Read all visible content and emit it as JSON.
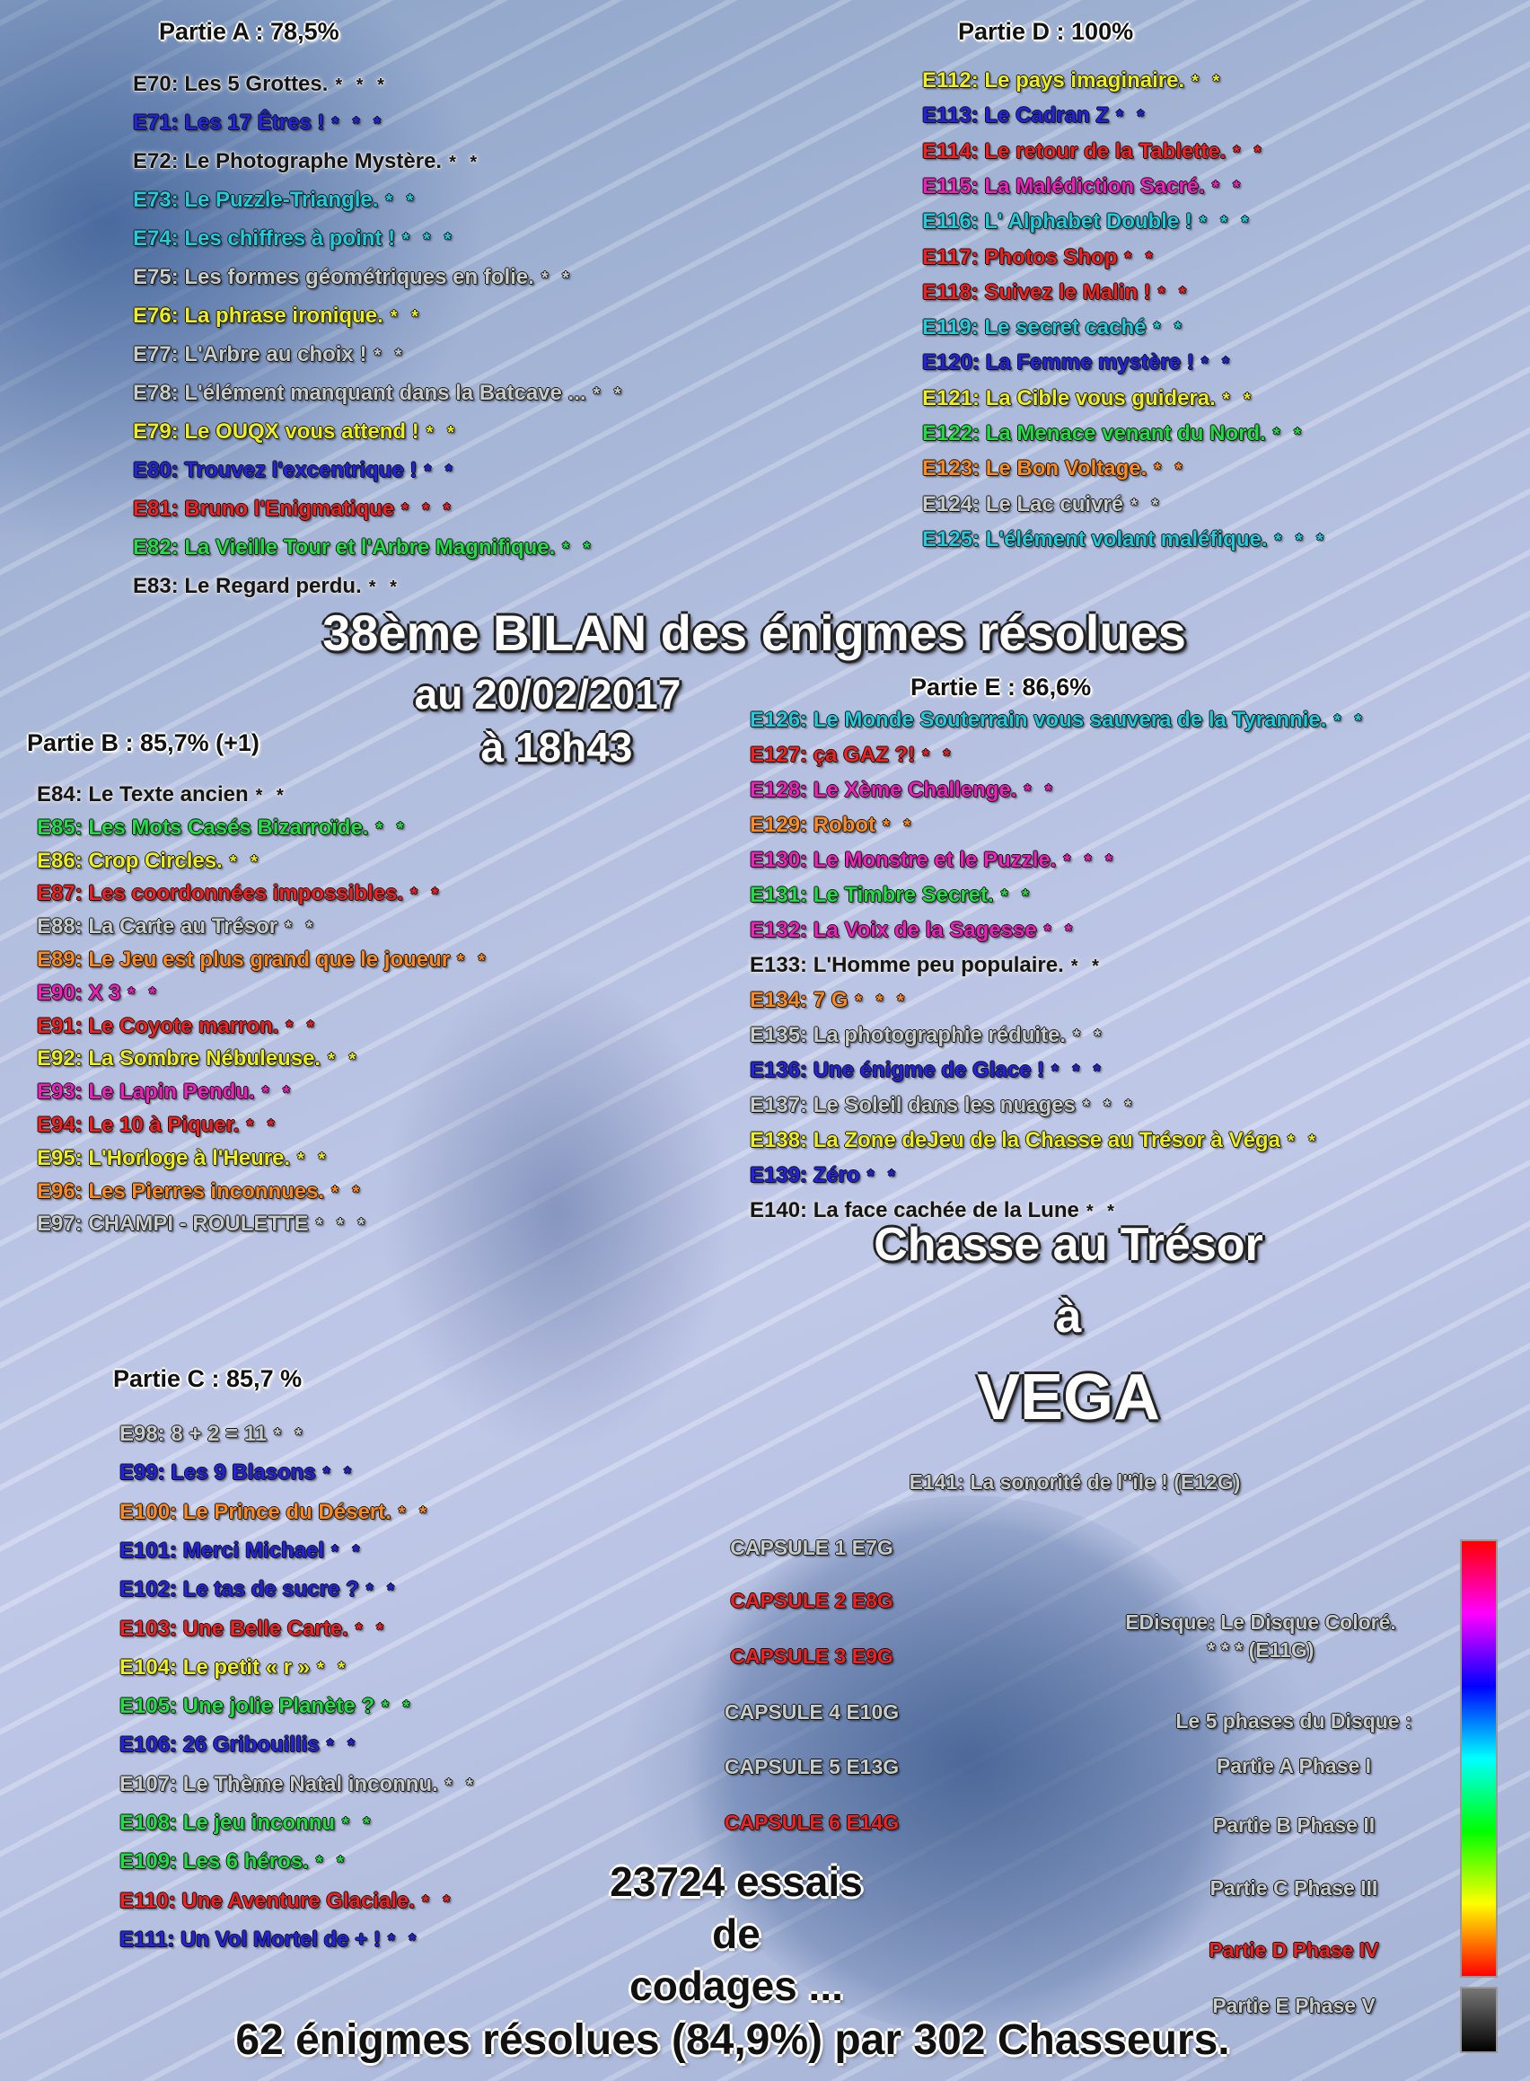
{
  "colors": {
    "black": "#151515",
    "blue": "#2323dd",
    "cyan": "#22ccdd",
    "gray": "#c9cdc9",
    "yellow": "#eeee22",
    "red": "#ee2222",
    "green": "#22dd44",
    "magenta": "#ee22bb",
    "orange": "#ff8a22",
    "gradient_bar": [
      "#ff0000",
      "#ff00ff",
      "#0000ff",
      "#00ffff",
      "#00ff00",
      "#ffff00",
      "#ff0000"
    ],
    "gray_bar": [
      "#777777",
      "#000000"
    ]
  },
  "headline": {
    "title": "38ème BILAN des énigmes résolues",
    "date": "au 20/02/2017",
    "time": "à 18h43"
  },
  "parts": {
    "A": {
      "title": "Partie A : 78,5%",
      "entries": [
        {
          "text": "E70: Les 5 Grottes.",
          "stars": "* * *",
          "color": "black"
        },
        {
          "text": "E71: Les 17 Êtres !",
          "stars": "* * *",
          "color": "blue"
        },
        {
          "text": "E72: Le Photographe Mystère.",
          "stars": "* *",
          "color": "black"
        },
        {
          "text": "E73: Le Puzzle-Triangle.",
          "stars": "* *",
          "color": "cyan"
        },
        {
          "text": "E74: Les chiffres à point !",
          "stars": "* * *",
          "color": "cyan"
        },
        {
          "text": "E75: Les formes géométriques en folie.",
          "stars": "* *",
          "color": "gray"
        },
        {
          "text": "E76: La phrase ironique.",
          "stars": "* *",
          "color": "yellow"
        },
        {
          "text": "E77: L'Arbre au choix !",
          "stars": "* *",
          "color": "gray"
        },
        {
          "text": "E78: L'élément manquant dans la Batcave ...",
          "stars": "* *",
          "color": "gray"
        },
        {
          "text": "E79: Le OUQX vous attend !",
          "stars": "* *",
          "color": "yellow"
        },
        {
          "text": "E80: Trouvez l'excentrique !",
          "stars": "* *",
          "color": "blue"
        },
        {
          "text": "E81: Bruno l'Enigmatique",
          "stars": "* * *",
          "color": "red"
        },
        {
          "text": "E82: La Vieille Tour et l'Arbre Magnifique.",
          "stars": "* *",
          "color": "green"
        },
        {
          "text": "E83: Le Regard perdu.",
          "stars": "* *",
          "color": "black"
        }
      ]
    },
    "B": {
      "title": "Partie B : 85,7% (+1)",
      "entries": [
        {
          "text": "E84: Le Texte ancien",
          "stars": "* *",
          "color": "black"
        },
        {
          "text": "E85: Les Mots Casés Bizarroïde.",
          "stars": "* *",
          "color": "green"
        },
        {
          "text": "E86: Crop Circles.",
          "stars": "* *",
          "color": "yellow"
        },
        {
          "text": "E87: Les coordonnées impossibles.",
          "stars": "* *",
          "color": "red"
        },
        {
          "text": "E88: La Carte au Trésor",
          "stars": "* *",
          "color": "gray"
        },
        {
          "text": "E89: Le Jeu est plus grand que le joueur",
          "stars": "* *",
          "color": "orange"
        },
        {
          "text": "E90: X 3",
          "stars": "* *",
          "color": "magenta"
        },
        {
          "text": "E91: Le Coyote marron.",
          "stars": "* *",
          "color": "red"
        },
        {
          "text": "E92: La Sombre Nébuleuse.",
          "stars": "* *",
          "color": "yellow"
        },
        {
          "text": "E93: Le Lapin Pendu.",
          "stars": "* *",
          "color": "magenta"
        },
        {
          "text": "E94: Le 10 à Piquer.",
          "stars": "* *",
          "color": "red"
        },
        {
          "text": "E95: L'Horloge à l'Heure.",
          "stars": "* *",
          "color": "yellow"
        },
        {
          "text": "E96: Les Pierres inconnues.",
          "stars": "* *",
          "color": "orange"
        },
        {
          "text": "E97: CHAMPI - ROULETTE",
          "stars": "* * *",
          "color": "gray"
        }
      ]
    },
    "C": {
      "title": "Partie C : 85,7 %",
      "entries": [
        {
          "text": "E98: 8 + 2 = 11",
          "stars": "* *",
          "color": "gray"
        },
        {
          "text": "E99: Les 9 Blasons",
          "stars": "* *",
          "color": "blue"
        },
        {
          "text": "E100: Le Prince du Désert.",
          "stars": "* *",
          "color": "orange"
        },
        {
          "text": "E101: Merci Michael",
          "stars": "* *",
          "color": "blue"
        },
        {
          "text": "E102: Le tas de sucre ?",
          "stars": "* *",
          "color": "blue"
        },
        {
          "text": "E103: Une Belle Carte.",
          "stars": "* *",
          "color": "red"
        },
        {
          "text": "E104: Le petit « r »",
          "stars": "* *",
          "color": "yellow"
        },
        {
          "text": "E105: Une jolie Planète ?",
          "stars": "* *",
          "color": "green"
        },
        {
          "text": "E106: 26 Gribouillis",
          "stars": "* *",
          "color": "blue"
        },
        {
          "text": "E107: Le Thème Natal inconnu.",
          "stars": "* *",
          "color": "gray"
        },
        {
          "text": "E108: Le jeu inconnu",
          "stars": "* *",
          "color": "green"
        },
        {
          "text": "E109: Les 6 héros.",
          "stars": "* *",
          "color": "green"
        },
        {
          "text": "E110: Une Aventure Glaciale.",
          "stars": "* *",
          "color": "red"
        },
        {
          "text": "E111: Un Vol Mortel de + !",
          "stars": "* *",
          "color": "blue"
        }
      ]
    },
    "D": {
      "title": "Partie D : 100%",
      "entries": [
        {
          "text": "E112: Le pays imaginaire.",
          "stars": "* *",
          "color": "yellow"
        },
        {
          "text": "E113: Le Cadran Z",
          "stars": "* *",
          "color": "blue"
        },
        {
          "text": "E114: Le retour de la Tablette.",
          "stars": "* *",
          "color": "red"
        },
        {
          "text": "E115: La Malédiction Sacré.",
          "stars": "* *",
          "color": "magenta"
        },
        {
          "text": "E116: L' Alphabet Double !",
          "stars": "* * *",
          "color": "cyan"
        },
        {
          "text": "E117: Photos Shop",
          "stars": "* *",
          "color": "red"
        },
        {
          "text": "E118: Suivez le Malin !",
          "stars": "* *",
          "color": "red"
        },
        {
          "text": "E119: Le secret caché",
          "stars": "* *",
          "color": "cyan"
        },
        {
          "text": "E120: La Femme mystère !",
          "stars": "* *",
          "color": "blue"
        },
        {
          "text": "E121: La Cible vous guidera.",
          "stars": "* *",
          "color": "yellow"
        },
        {
          "text": "E122: La Menace venant du Nord.",
          "stars": "* *",
          "color": "green"
        },
        {
          "text": "E123: Le Bon Voltage.",
          "stars": "* *",
          "color": "orange"
        },
        {
          "text": "E124: Le Lac cuivré",
          "stars": "* *",
          "color": "gray"
        },
        {
          "text": "E125: L'élément volant maléfique.",
          "stars": "* * *",
          "color": "cyan"
        }
      ]
    },
    "E": {
      "title": "Partie E : 86,6%",
      "entries": [
        {
          "text": "E126: Le Monde Souterrain vous sauvera de la Tyrannie.",
          "stars": "* *",
          "color": "cyan"
        },
        {
          "text": "E127: ça GAZ ?!",
          "stars": "* *",
          "color": "red"
        },
        {
          "text": "E128: Le Xème Challenge.",
          "stars": "* *",
          "color": "magenta"
        },
        {
          "text": "E129: Robot",
          "stars": "* *",
          "color": "orange"
        },
        {
          "text": "E130: Le Monstre et le Puzzle.",
          "stars": "* * *",
          "color": "magenta"
        },
        {
          "text": "E131: Le Timbre Secret.",
          "stars": "* *",
          "color": "green"
        },
        {
          "text": "E132: La Voix de la Sagesse",
          "stars": "* *",
          "color": "magenta"
        },
        {
          "text": "E133: L'Homme peu populaire.",
          "stars": "* *",
          "color": "black"
        },
        {
          "text": "E134: 7 G",
          "stars": "* * *",
          "color": "orange"
        },
        {
          "text": "E135: La photographie réduite.",
          "stars": "* *",
          "color": "gray"
        },
        {
          "text": "E136: Une énigme de Glace !",
          "stars": "* * *",
          "color": "blue"
        },
        {
          "text": "E137: Le Soleil dans les nuages",
          "stars": "* * *",
          "color": "gray"
        },
        {
          "text": "E138: La Zone deJeu de la Chasse au Trésor à Véga",
          "stars": "* *",
          "color": "yellow"
        },
        {
          "text": "E139: Zéro",
          "stars": "* *",
          "color": "blue"
        },
        {
          "text": "E140: La face cachée de la Lune",
          "stars": "* *",
          "color": "black"
        }
      ]
    }
  },
  "treasure": {
    "line1": "Chasse au Trésor",
    "line2": "à",
    "line3": "VEGA"
  },
  "e141": "E141: La sonorité de l''île ! (E12G)",
  "capsules": [
    {
      "label": "CAPSULE 1 E7G",
      "highlight": false
    },
    {
      "label": "CAPSULE 2 E8G",
      "highlight": true
    },
    {
      "label": "CAPSULE 3 E9G",
      "highlight": true
    },
    {
      "label": "CAPSULE 4 E10G",
      "highlight": false
    },
    {
      "label": "CAPSULE 5 E13G",
      "highlight": false
    },
    {
      "label": "CAPSULE 6 E14G",
      "highlight": true
    }
  ],
  "disque": {
    "line1": "EDisque: Le Disque Coloré.",
    "line2": "* * * (E11G)"
  },
  "phases": {
    "heading": "Le 5 phases du Disque :",
    "items": [
      {
        "label": "Partie A Phase I",
        "highlight": false
      },
      {
        "label": "Partie B Phase II",
        "highlight": false
      },
      {
        "label": "Partie C Phase III",
        "highlight": false
      },
      {
        "label": "Partie D Phase IV",
        "highlight": true
      },
      {
        "label": "Partie E Phase V",
        "highlight": false
      }
    ]
  },
  "essais": {
    "line1": "23724 essais",
    "line2": "de",
    "line3": "codages ..."
  },
  "footer": "62 énigmes résolues (84,9%) par 302 Chasseurs."
}
